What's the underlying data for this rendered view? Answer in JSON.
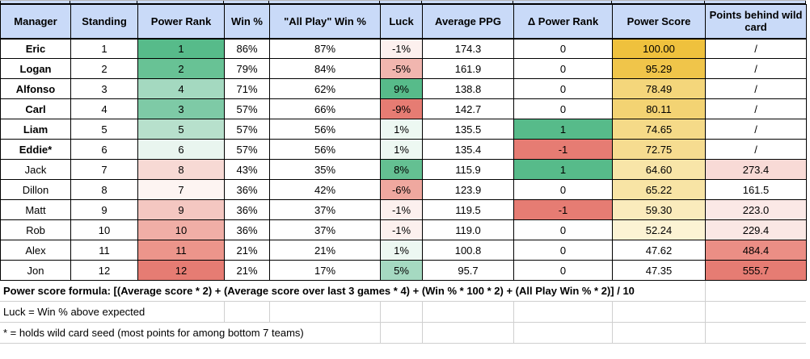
{
  "sheet": {
    "colors": {
      "header_bg": "#c9daf8",
      "grid_black": "#000000",
      "grid_gray": "#cfcfcf",
      "scale_green": "#57bb8a",
      "scale_red": "#e67c73",
      "scale_gold": "#efc13d"
    },
    "table": {
      "columns": [
        {
          "key": "manager",
          "label": "Manager"
        },
        {
          "key": "standing",
          "label": "Standing"
        },
        {
          "key": "power-rank",
          "label": "Power Rank"
        },
        {
          "key": "win-pct",
          "label": "Win %"
        },
        {
          "key": "all-play-win-pct",
          "label": "\"All Play\" Win %"
        },
        {
          "key": "luck",
          "label": "Luck"
        },
        {
          "key": "average-ppg",
          "label": "Average PPG"
        },
        {
          "key": "delta-power-rank",
          "label": "Δ Power Rank"
        },
        {
          "key": "power-score",
          "label": "Power Score"
        },
        {
          "key": "points-behind-wild-card",
          "label": "Points behind wild card"
        }
      ],
      "rows": [
        {
          "bold": true,
          "cells": [
            {
              "v": "Eric"
            },
            {
              "v": "1"
            },
            {
              "v": "1",
              "bg": "#57bb8a"
            },
            {
              "v": "86%"
            },
            {
              "v": "87%"
            },
            {
              "v": "-1%",
              "bg": "#fcf0ee"
            },
            {
              "v": "174.3"
            },
            {
              "v": "0"
            },
            {
              "v": "100.00",
              "bg": "#efc13d"
            },
            {
              "v": "/"
            }
          ]
        },
        {
          "bold": true,
          "cells": [
            {
              "v": "Logan"
            },
            {
              "v": "2"
            },
            {
              "v": "2",
              "bg": "#68c295"
            },
            {
              "v": "79%"
            },
            {
              "v": "84%"
            },
            {
              "v": "-5%",
              "bg": "#f1b6af"
            },
            {
              "v": "161.9"
            },
            {
              "v": "0"
            },
            {
              "v": "95.29",
              "bg": "#f0c54a"
            },
            {
              "v": "/"
            }
          ]
        },
        {
          "bold": true,
          "cells": [
            {
              "v": "Alfonso"
            },
            {
              "v": "3"
            },
            {
              "v": "4",
              "bg": "#a4d9c0"
            },
            {
              "v": "71%"
            },
            {
              "v": "62%"
            },
            {
              "v": "9%",
              "bg": "#57bb8a"
            },
            {
              "v": "138.8"
            },
            {
              "v": "0"
            },
            {
              "v": "78.49",
              "bg": "#f4d67b"
            },
            {
              "v": "/"
            }
          ]
        },
        {
          "bold": true,
          "cells": [
            {
              "v": "Carl"
            },
            {
              "v": "4"
            },
            {
              "v": "3",
              "bg": "#7ecaa6"
            },
            {
              "v": "57%"
            },
            {
              "v": "66%"
            },
            {
              "v": "-9%",
              "bg": "#e67c73"
            },
            {
              "v": "142.7"
            },
            {
              "v": "0"
            },
            {
              "v": "80.11",
              "bg": "#f3d373"
            },
            {
              "v": "/"
            }
          ]
        },
        {
          "bold": true,
          "cells": [
            {
              "v": "Liam"
            },
            {
              "v": "5"
            },
            {
              "v": "5",
              "bg": "#b7e0cc"
            },
            {
              "v": "57%"
            },
            {
              "v": "56%"
            },
            {
              "v": "1%",
              "bg": "#edf8f2"
            },
            {
              "v": "135.5"
            },
            {
              "v": "1",
              "bg": "#57bb8a"
            },
            {
              "v": "74.65",
              "bg": "#f5da88"
            },
            {
              "v": "/"
            }
          ]
        },
        {
          "bold": true,
          "cells": [
            {
              "v": "Eddie*"
            },
            {
              "v": "6"
            },
            {
              "v": "6",
              "bg": "#e9f5ef"
            },
            {
              "v": "57%"
            },
            {
              "v": "56%"
            },
            {
              "v": "1%",
              "bg": "#edf8f2"
            },
            {
              "v": "135.4"
            },
            {
              "v": "-1",
              "bg": "#e67c73"
            },
            {
              "v": "72.75",
              "bg": "#f6dc90"
            },
            {
              "v": "/"
            }
          ]
        },
        {
          "bold": false,
          "cells": [
            {
              "v": "Jack"
            },
            {
              "v": "7"
            },
            {
              "v": "8",
              "bg": "#f7d9d4"
            },
            {
              "v": "43%"
            },
            {
              "v": "35%"
            },
            {
              "v": "8%",
              "bg": "#64c092"
            },
            {
              "v": "115.9"
            },
            {
              "v": "1",
              "bg": "#57bb8a"
            },
            {
              "v": "64.60",
              "bg": "#f8e5a8"
            },
            {
              "v": "273.4",
              "bg": "#f8dad6"
            }
          ]
        },
        {
          "bold": false,
          "cells": [
            {
              "v": "Dillon"
            },
            {
              "v": "8"
            },
            {
              "v": "7",
              "bg": "#fdf4f2"
            },
            {
              "v": "36%"
            },
            {
              "v": "42%"
            },
            {
              "v": "-6%",
              "bg": "#efa89f"
            },
            {
              "v": "123.9"
            },
            {
              "v": "0"
            },
            {
              "v": "65.22",
              "bg": "#f8e4a5"
            },
            {
              "v": "161.5"
            }
          ]
        },
        {
          "bold": false,
          "cells": [
            {
              "v": "Matt"
            },
            {
              "v": "9"
            },
            {
              "v": "9",
              "bg": "#f4c7c1"
            },
            {
              "v": "36%"
            },
            {
              "v": "37%"
            },
            {
              "v": "-1%",
              "bg": "#fcf0ee"
            },
            {
              "v": "119.5"
            },
            {
              "v": "-1",
              "bg": "#e67c73"
            },
            {
              "v": "59.30",
              "bg": "#faebbc"
            },
            {
              "v": "223.0",
              "bg": "#fbe8e6"
            }
          ]
        },
        {
          "bold": false,
          "cells": [
            {
              "v": "Rob"
            },
            {
              "v": "10"
            },
            {
              "v": "10",
              "bg": "#f0aea6"
            },
            {
              "v": "36%"
            },
            {
              "v": "37%"
            },
            {
              "v": "-1%",
              "bg": "#fcf0ee"
            },
            {
              "v": "119.0"
            },
            {
              "v": "0"
            },
            {
              "v": "52.24",
              "bg": "#fcf3d4"
            },
            {
              "v": "229.4",
              "bg": "#fae7e4"
            }
          ]
        },
        {
          "bold": false,
          "cells": [
            {
              "v": "Alex"
            },
            {
              "v": "11"
            },
            {
              "v": "11",
              "bg": "#ec958b"
            },
            {
              "v": "21%"
            },
            {
              "v": "21%"
            },
            {
              "v": "1%",
              "bg": "#edf8f2"
            },
            {
              "v": "100.8"
            },
            {
              "v": "0"
            },
            {
              "v": "47.62"
            },
            {
              "v": "484.4",
              "bg": "#eb8e85"
            }
          ]
        },
        {
          "bold": false,
          "cells": [
            {
              "v": "Jon"
            },
            {
              "v": "12"
            },
            {
              "v": "12",
              "bg": "#e67c73"
            },
            {
              "v": "21%"
            },
            {
              "v": "17%"
            },
            {
              "v": "5%",
              "bg": "#a5d9c1"
            },
            {
              "v": "95.7"
            },
            {
              "v": "0"
            },
            {
              "v": "47.35"
            },
            {
              "v": "555.7",
              "bg": "#e67c73"
            }
          ]
        }
      ]
    },
    "footer": {
      "lines": [
        {
          "bold": true,
          "text": "Power score formula: [(Average score * 2) + (Average score over last 3 games * 4) + (Win % * 100 * 2) + (All Play Win % * 2)] / 10"
        },
        {
          "bold": false,
          "text": "Luck = Win % above expected"
        },
        {
          "bold": false,
          "text": "* = holds wild card seed (most points for among bottom 7 teams)"
        }
      ]
    }
  }
}
